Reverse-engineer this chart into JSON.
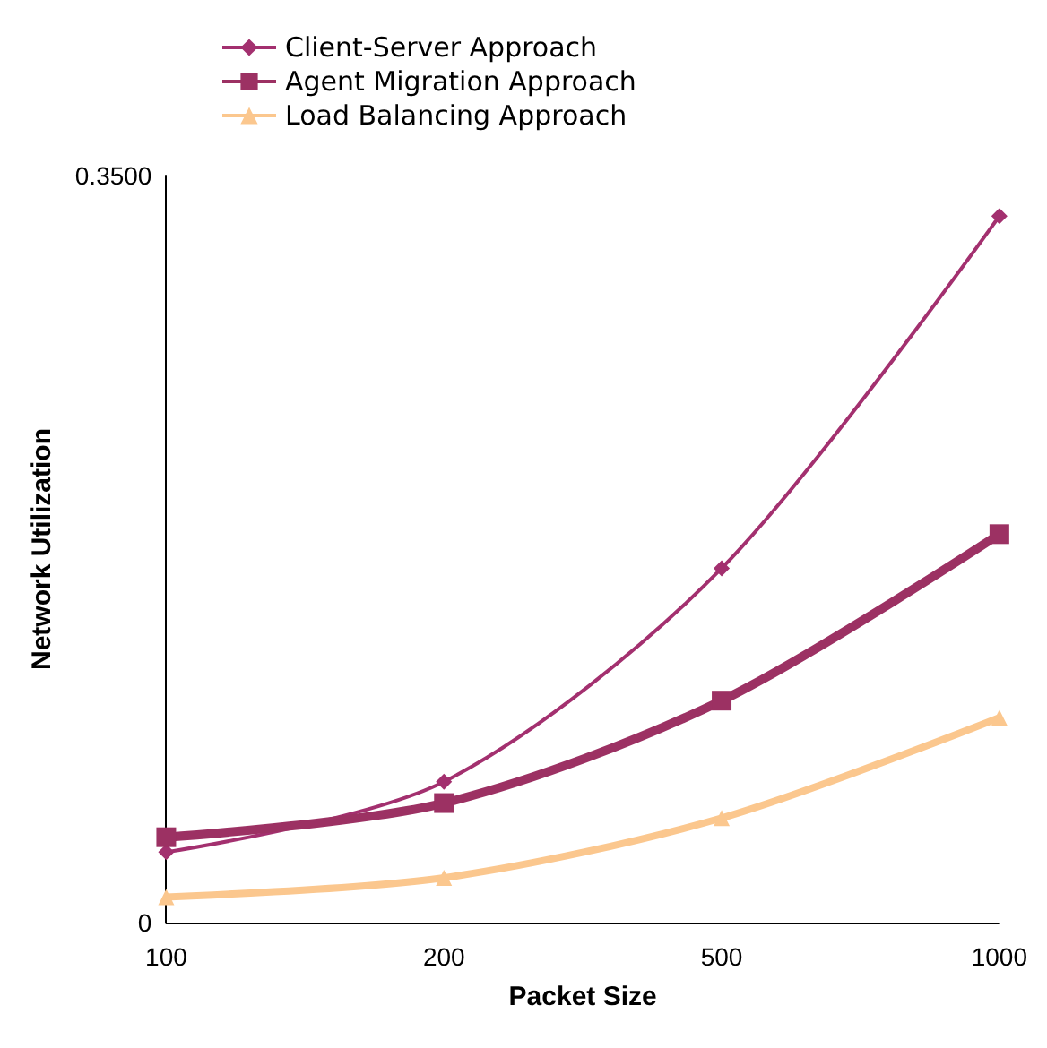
{
  "chart_data": {
    "type": "line",
    "xlabel": "Packet Size",
    "ylabel": "Network Utilization",
    "categories": [
      "100",
      "200",
      "500",
      "1000"
    ],
    "series": [
      {
        "name": "Client-Server Approach",
        "color": "#a3306f",
        "marker": "diamond",
        "values": [
          0.033,
          0.066,
          0.166,
          0.331
        ]
      },
      {
        "name": "Agent Migration Approach",
        "color": "#9c3163",
        "marker": "square",
        "values": [
          0.04,
          0.056,
          0.104,
          0.182
        ]
      },
      {
        "name": "Load Balancing Approach",
        "color": "#fbc78e",
        "marker": "triangle",
        "values": [
          0.012,
          0.021,
          0.049,
          0.096
        ]
      }
    ],
    "ylim": [
      0,
      0.35
    ],
    "yticks": [
      0,
      {
        "value": 0.35,
        "label": "0.3500"
      }
    ],
    "grid": false,
    "legend": "top"
  }
}
